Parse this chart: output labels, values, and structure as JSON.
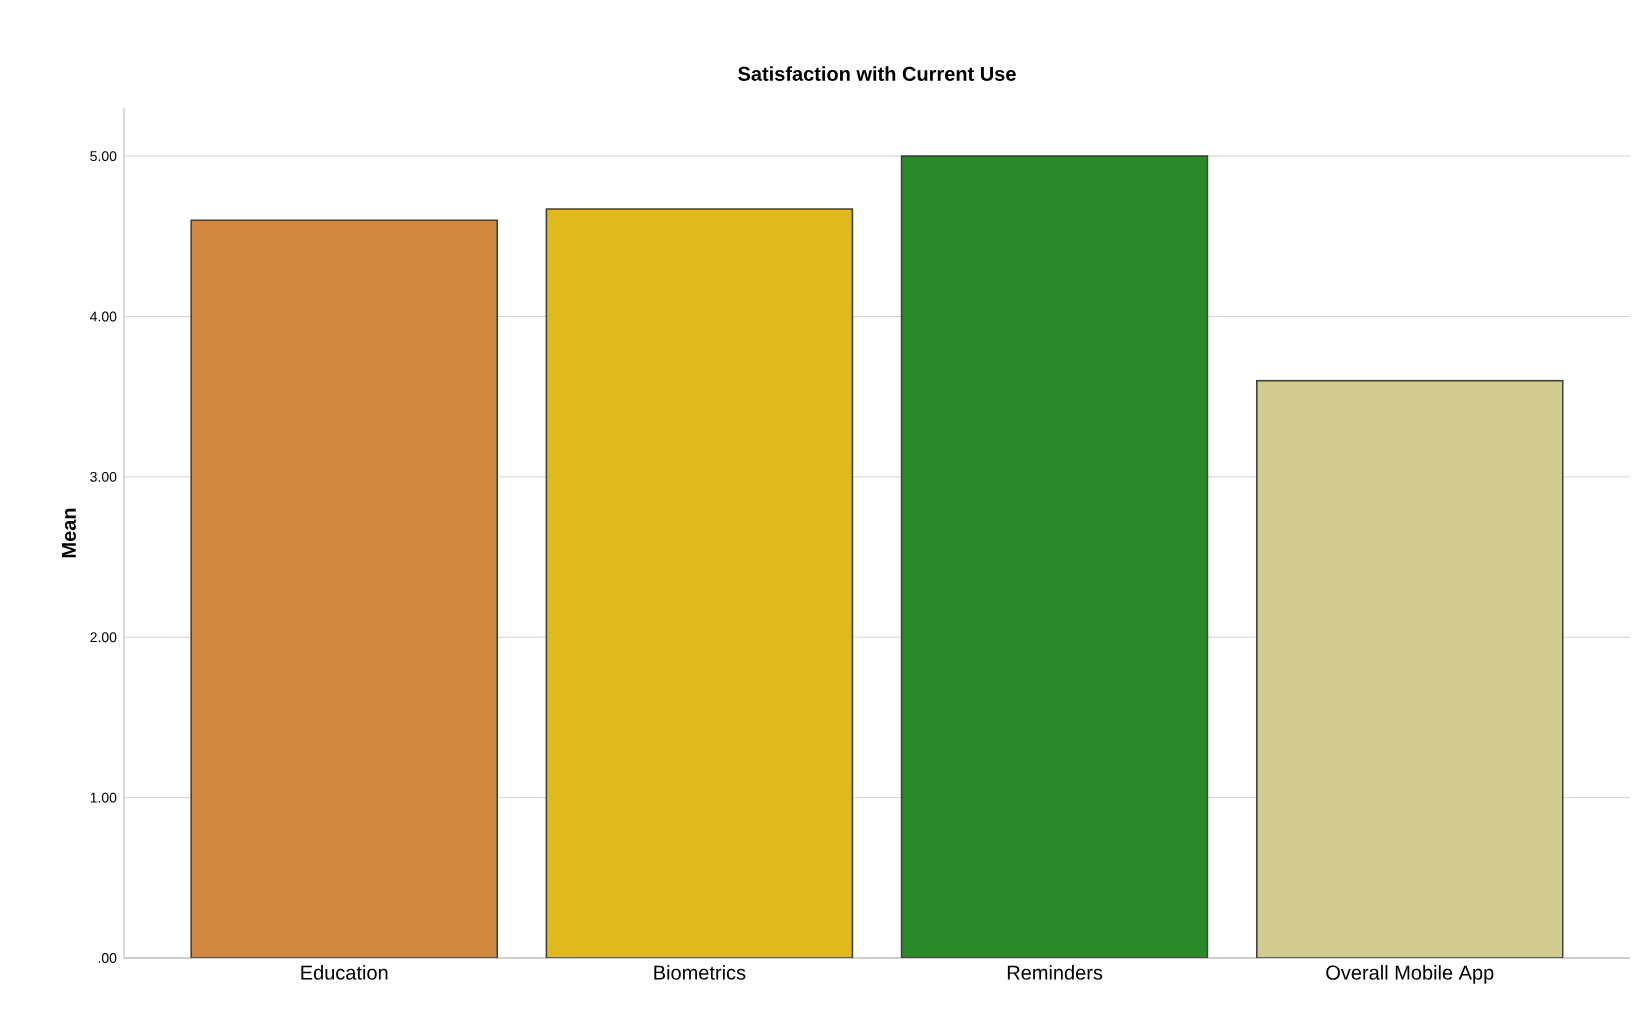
{
  "chart_data": {
    "type": "bar",
    "title": "Satisfaction with Current Use",
    "ylabel": "Mean",
    "categories": [
      "Education",
      "Biometrics",
      "Reminders",
      "Overall Mobile App"
    ],
    "values": [
      4.6,
      4.67,
      5.0,
      3.6
    ],
    "colors": [
      "#d0873f",
      "#e0b91f",
      "#2a8a2a",
      "#d1cb8f"
    ],
    "ylim": [
      0,
      5.3
    ],
    "yticks": [
      {
        "value": 0,
        "label": ".00"
      },
      {
        "value": 1,
        "label": "1.00"
      },
      {
        "value": 2,
        "label": "2.00"
      },
      {
        "value": 3,
        "label": "3.00"
      },
      {
        "value": 4,
        "label": "4.00"
      },
      {
        "value": 5,
        "label": "5.00"
      }
    ],
    "grid": "y"
  }
}
